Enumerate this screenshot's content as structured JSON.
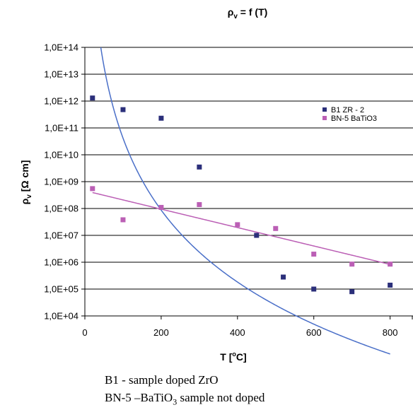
{
  "chart_data": {
    "type": "scatter",
    "title": {
      "main": "ρ",
      "sub": "v",
      "rest": " = f (T)"
    },
    "xlabel": {
      "main": "T [",
      "sup": "o",
      "rest": "C]"
    },
    "ylabel": {
      "main": "ρ",
      "sub": "v",
      "rest": "  [Ω cm]"
    },
    "xlim": [
      0,
      860
    ],
    "ylim_log10": [
      4,
      14
    ],
    "y_scale": "log",
    "xticks": [
      0,
      200,
      400,
      600,
      800
    ],
    "yticks": [
      "1,0E+04",
      "1,0E+05",
      "1,0E+06",
      "1,0E+07",
      "1,0E+08",
      "1,0E+09",
      "1,0E+10",
      "1,0E+11",
      "1,0E+12",
      "1,0E+13",
      "1,0E+14"
    ],
    "grid": "horizontal",
    "legend_position": "top-right",
    "series": [
      {
        "name": "B1  ZR - 2",
        "color": "#2b2f7a",
        "x": [
          20,
          100,
          200,
          300,
          450,
          520,
          600,
          700,
          800
        ],
        "y": [
          1300000000000.0,
          480000000000.0,
          230000000000.0,
          3500000000.0,
          10000000.0,
          280000.0,
          100000.0,
          80000.0,
          140000.0
        ],
        "trend": {
          "type": "power",
          "color": "#4a6fc8",
          "a": 2.63e+28,
          "b": -8.9,
          "x_start": 25,
          "x_end": 800
        }
      },
      {
        "name": "BN-5  BaTiO3",
        "color": "#bb5fb5",
        "x": [
          20,
          100,
          200,
          300,
          400,
          500,
          600,
          700,
          800
        ],
        "y": [
          550000000.0,
          38000000.0,
          110000000.0,
          140000000.0,
          25000000.0,
          18000000.0,
          2000000.0,
          850000.0,
          850000.0
        ],
        "trend": {
          "type": "exponential",
          "color": "#bb5fb5",
          "a": 460000000.0,
          "b": -0.0079,
          "x_start": 20,
          "x_end": 800
        }
      }
    ]
  },
  "caption": {
    "line1": "B1 -  sample doped ZrO",
    "line2": {
      "part1": "BN-5 –BaTiO",
      "sub": "3",
      "part2": " sample not doped"
    }
  }
}
